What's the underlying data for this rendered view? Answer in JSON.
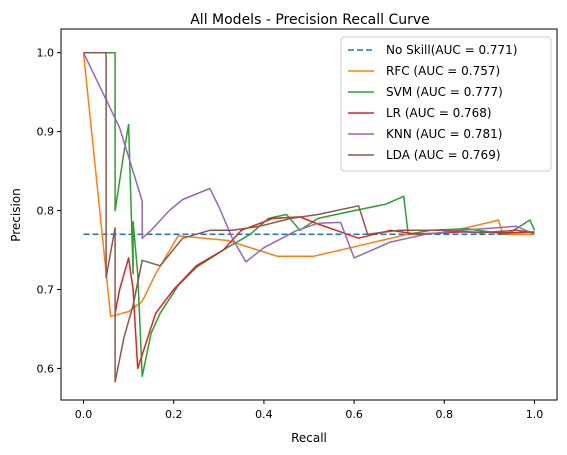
{
  "chart_data": {
    "type": "line",
    "title": "All Models - Precision Recall Curve",
    "xlabel": "Recall",
    "ylabel": "Precision",
    "xlim": [
      -0.05,
      1.05
    ],
    "ylim": [
      0.56,
      1.03
    ],
    "xticks": [
      0.0,
      0.2,
      0.4,
      0.6,
      0.8,
      1.0
    ],
    "xtick_labels": [
      "0.0",
      "0.2",
      "0.4",
      "0.6",
      "0.8",
      "1.0"
    ],
    "yticks": [
      0.6,
      0.7,
      0.8,
      0.9,
      1.0
    ],
    "ytick_labels": [
      "0.6",
      "0.7",
      "0.8",
      "0.9",
      "1.0"
    ],
    "grid": false,
    "legend_position": "top-right",
    "series": [
      {
        "name": "No Skill(AUC = 0.771)",
        "color": "#1f77b4",
        "dashed": true,
        "points": [
          [
            0,
            0.77
          ],
          [
            1,
            0.77
          ]
        ]
      },
      {
        "name": "RFC (AUC = 0.757)",
        "color": "#ff7f0e",
        "dashed": false,
        "points": [
          [
            0,
            1.0
          ],
          [
            0.06,
            0.666
          ],
          [
            0.1,
            0.672
          ],
          [
            0.13,
            0.685
          ],
          [
            0.16,
            0.72
          ],
          [
            0.21,
            0.768
          ],
          [
            0.23,
            0.767
          ],
          [
            0.32,
            0.762
          ],
          [
            0.43,
            0.742
          ],
          [
            0.51,
            0.742
          ],
          [
            0.63,
            0.758
          ],
          [
            0.72,
            0.77
          ],
          [
            0.8,
            0.772
          ],
          [
            0.9,
            0.785
          ],
          [
            0.92,
            0.788
          ],
          [
            0.93,
            0.77
          ],
          [
            1.0,
            0.77
          ]
        ]
      },
      {
        "name": "SVM (AUC = 0.777)",
        "color": "#2ca02c",
        "dashed": false,
        "points": [
          [
            0,
            1.0
          ],
          [
            0.07,
            1.0
          ],
          [
            0.07,
            0.8
          ],
          [
            0.09,
            0.875
          ],
          [
            0.1,
            0.909
          ],
          [
            0.11,
            0.72
          ],
          [
            0.11,
            0.786
          ],
          [
            0.12,
            0.72
          ],
          [
            0.13,
            0.59
          ],
          [
            0.15,
            0.645
          ],
          [
            0.17,
            0.67
          ],
          [
            0.21,
            0.705
          ],
          [
            0.25,
            0.728
          ],
          [
            0.31,
            0.75
          ],
          [
            0.37,
            0.77
          ],
          [
            0.41,
            0.79
          ],
          [
            0.45,
            0.795
          ],
          [
            0.48,
            0.775
          ],
          [
            0.52,
            0.79
          ],
          [
            0.6,
            0.8
          ],
          [
            0.67,
            0.808
          ],
          [
            0.71,
            0.818
          ],
          [
            0.72,
            0.77
          ],
          [
            0.77,
            0.775
          ],
          [
            0.85,
            0.777
          ],
          [
            0.94,
            0.77
          ],
          [
            0.99,
            0.788
          ],
          [
            1.0,
            0.775
          ]
        ]
      },
      {
        "name": "LR (AUC = 0.768)",
        "color": "#d62728",
        "dashed": false,
        "points": [
          [
            0.07,
            0.67
          ],
          [
            0.08,
            0.7
          ],
          [
            0.09,
            0.72
          ],
          [
            0.1,
            0.74
          ],
          [
            0.11,
            0.7
          ],
          [
            0.12,
            0.6
          ],
          [
            0.14,
            0.635
          ],
          [
            0.16,
            0.67
          ],
          [
            0.2,
            0.7
          ],
          [
            0.25,
            0.73
          ],
          [
            0.31,
            0.75
          ],
          [
            0.35,
            0.775
          ],
          [
            0.42,
            0.79
          ],
          [
            0.48,
            0.792
          ],
          [
            0.52,
            0.783
          ],
          [
            0.56,
            0.775
          ],
          [
            0.61,
            0.765
          ],
          [
            0.68,
            0.775
          ],
          [
            0.74,
            0.77
          ],
          [
            0.84,
            0.773
          ],
          [
            0.95,
            0.772
          ],
          [
            1.0,
            0.773
          ]
        ]
      },
      {
        "name": "KNN (AUC = 0.781)",
        "color": "#9467bd",
        "dashed": false,
        "points": [
          [
            0,
            1.0
          ],
          [
            0.08,
            0.905
          ],
          [
            0.13,
            0.812
          ],
          [
            0.13,
            0.765
          ],
          [
            0.15,
            0.775
          ],
          [
            0.19,
            0.8
          ],
          [
            0.22,
            0.814
          ],
          [
            0.28,
            0.828
          ],
          [
            0.3,
            0.805
          ],
          [
            0.33,
            0.765
          ],
          [
            0.36,
            0.735
          ],
          [
            0.4,
            0.753
          ],
          [
            0.47,
            0.774
          ],
          [
            0.52,
            0.784
          ],
          [
            0.57,
            0.785
          ],
          [
            0.6,
            0.74
          ],
          [
            0.68,
            0.76
          ],
          [
            0.76,
            0.77
          ],
          [
            0.84,
            0.775
          ],
          [
            0.96,
            0.78
          ],
          [
            1.0,
            0.77
          ]
        ]
      },
      {
        "name": "LDA (AUC = 0.769)",
        "color": "#8c564b",
        "dashed": false,
        "points": [
          [
            0,
            1.0
          ],
          [
            0.05,
            1.0
          ],
          [
            0.05,
            0.715
          ],
          [
            0.07,
            0.778
          ],
          [
            0.07,
            0.583
          ],
          [
            0.09,
            0.64
          ],
          [
            0.11,
            0.68
          ],
          [
            0.13,
            0.737
          ],
          [
            0.17,
            0.73
          ],
          [
            0.22,
            0.765
          ],
          [
            0.28,
            0.775
          ],
          [
            0.33,
            0.775
          ],
          [
            0.39,
            0.78
          ],
          [
            0.46,
            0.79
          ],
          [
            0.52,
            0.795
          ],
          [
            0.61,
            0.806
          ],
          [
            0.63,
            0.77
          ],
          [
            0.7,
            0.775
          ],
          [
            0.79,
            0.775
          ],
          [
            0.88,
            0.772
          ],
          [
            0.96,
            0.775
          ],
          [
            1.0,
            0.772
          ]
        ]
      }
    ]
  }
}
